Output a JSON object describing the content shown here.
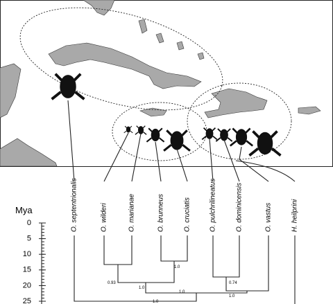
{
  "axis": {
    "label": "Mya",
    "ticks": [
      0,
      5,
      10,
      15,
      20,
      25
    ]
  },
  "taxa": [
    "O. septentrionalis",
    "O. wilderi",
    "O. marianae",
    "O. brunneus",
    "O. cruciatis",
    "O. pulchrilineatus",
    "O. dominicensis",
    "O. vastus",
    "H. heilprini"
  ],
  "support": [
    "0.93",
    "1.0",
    "1.0",
    "0.74",
    "1.0",
    "1.0",
    "1.0"
  ]
}
